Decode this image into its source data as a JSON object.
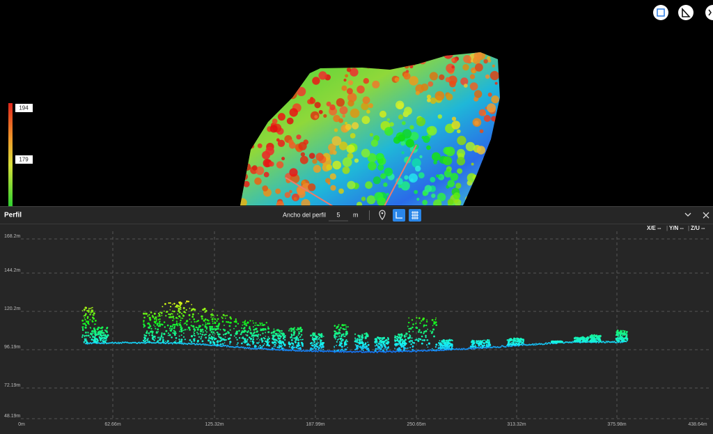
{
  "color_scale": {
    "labels": [
      "194",
      "179"
    ]
  },
  "profile_panel": {
    "title": "Perfil",
    "width_label": "Ancho del perfil",
    "width_value": "5",
    "width_unit": "m",
    "coordinates": [
      "X/E --",
      "Y/N --",
      "Z/U --"
    ],
    "y_axis_labels": [
      "168.2m",
      "144.2m",
      "120.2m",
      "96.19m",
      "72.19m",
      "48.19m"
    ],
    "x_axis_labels": [
      "0m",
      "62.66m",
      "125.32m",
      "187.99m",
      "250.65m",
      "313.32m",
      "375.98m",
      "438.64m"
    ]
  }
}
